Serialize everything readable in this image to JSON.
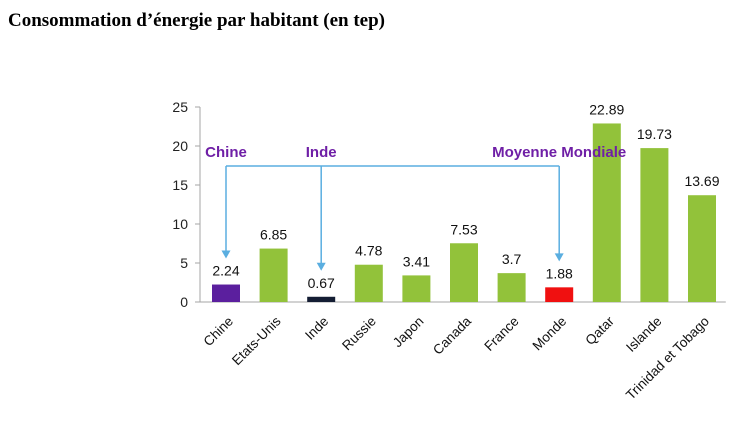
{
  "page": {
    "title": "Consommation d’énergie par habitant (en tep)"
  },
  "chart_data": {
    "type": "bar",
    "title": "Consommation d’énergie par habitant (en tep)",
    "xlabel": "",
    "ylabel": "",
    "ylim": [
      0,
      25
    ],
    "yticks": [
      0,
      5,
      10,
      15,
      20,
      25
    ],
    "grid": false,
    "categories": [
      "Chine",
      "Etats-Unis",
      "Inde",
      "Russie",
      "Japon",
      "Canada",
      "France",
      "Monde",
      "Qatar",
      "Islande",
      "Trinidad et Tobago"
    ],
    "values": [
      2.24,
      6.85,
      0.67,
      4.78,
      3.41,
      7.53,
      3.7,
      1.88,
      22.89,
      19.73,
      13.69
    ],
    "value_labels": [
      "2.24",
      "6.85",
      "0.67",
      "4.78",
      "3.41",
      "7.53",
      "3.7",
      "1.88",
      "22.89",
      "19.73",
      "13.69"
    ],
    "bar_colors": [
      "#5b1f9e",
      "#92c23a",
      "#141d33",
      "#92c23a",
      "#92c23a",
      "#92c23a",
      "#92c23a",
      "#f01010",
      "#92c23a",
      "#92c23a",
      "#92c23a"
    ],
    "annotations": [
      {
        "text": "Chine",
        "target": "Chine"
      },
      {
        "text": "Inde",
        "target": "Inde"
      },
      {
        "text": "Moyenne Mondiale",
        "target": "Monde"
      }
    ],
    "annotation_color": "#6f1fa6",
    "arrow_color": "#5aaee0",
    "axis_color": "#a6a6a6"
  }
}
